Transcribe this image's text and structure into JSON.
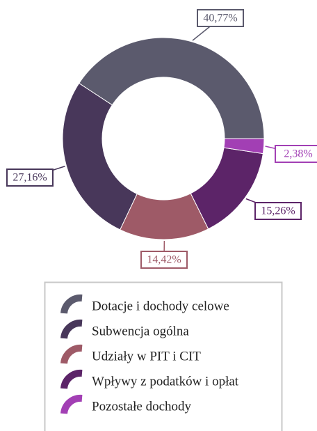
{
  "chart_data": {
    "type": "donut",
    "categories": [
      "Dotacje i dochody celowe",
      "Subwencja ogólna",
      "Udziały w PIT i CIT",
      "Wpływy z podatków i opłat",
      "Pozostałe dochody"
    ],
    "values": [
      40.77,
      27.16,
      14.42,
      15.26,
      2.38
    ],
    "value_labels": [
      "40,77%",
      "27,16%",
      "14,42%",
      "15,26%",
      "2,38%"
    ],
    "colors": [
      "#5b5a6d",
      "#48375a",
      "#9e5a67",
      "#5c2468",
      "#a23fb4"
    ]
  }
}
